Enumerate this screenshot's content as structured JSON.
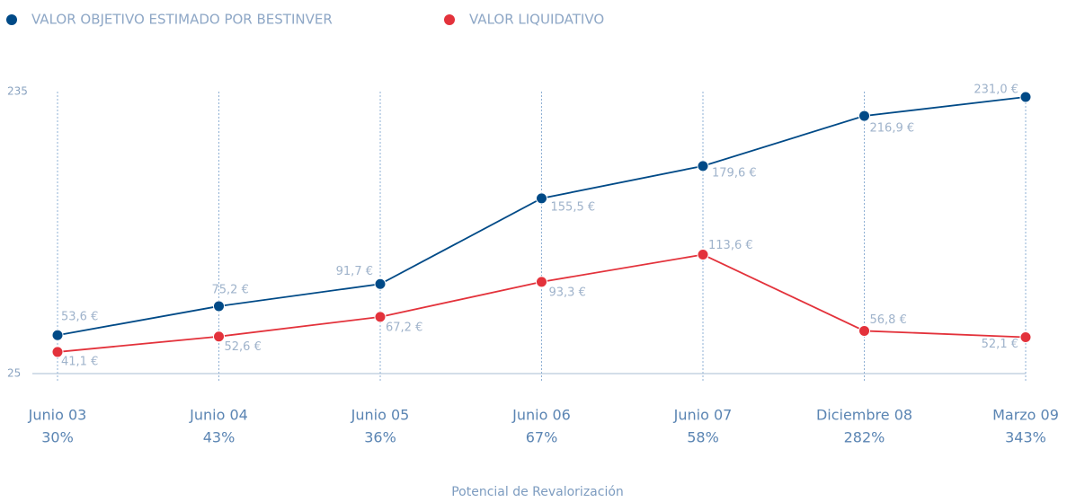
{
  "chart_data": {
    "type": "line",
    "categories": [
      "Junio 03",
      "Junio 04",
      "Junio 05",
      "Junio 06",
      "Junio 07",
      "Diciembre 08",
      "Marzo 09"
    ],
    "category_sublabels": [
      "30%",
      "43%",
      "36%",
      "67%",
      "58%",
      "282%",
      "343%"
    ],
    "x_label": "Potencial de Revalorización",
    "series": [
      {
        "name": "VALOR OBJETIVO ESTIMADO POR BESTINVER",
        "color": "#004a87",
        "values": [
          53.6,
          75.2,
          91.7,
          155.5,
          179.6,
          216.9,
          231.0
        ],
        "value_labels": [
          "53,6 €",
          "75,2 €",
          "91,7 €",
          "155,5 €",
          "179,6 €",
          "216,9 €",
          "231,0 €"
        ]
      },
      {
        "name": "VALOR  LIQUIDATIVO",
        "color": "#e3323b",
        "values": [
          41.1,
          52.6,
          67.2,
          93.3,
          113.6,
          56.8,
          52.1
        ],
        "value_labels": [
          "41,1 €",
          "52,6 €",
          "67,2 €",
          "93,3 €",
          "113,6 €",
          "56,8 €",
          "52,1 €"
        ]
      }
    ],
    "ylim": [
      25,
      235
    ],
    "yticks": [
      25,
      235
    ],
    "grid": true
  }
}
